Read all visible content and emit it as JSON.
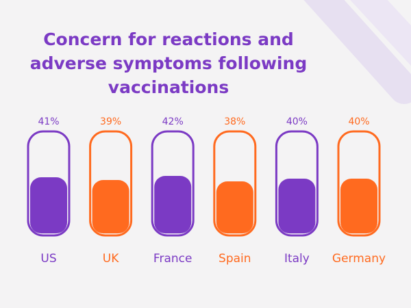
{
  "title_lines": [
    "Concern for reactions and",
    "adverse symptoms following",
    "vaccinations"
  ],
  "colors": {
    "purple": "#7b3ac4",
    "orange": "#ff6a1f",
    "background": "#f4f3f4"
  },
  "chart_data": {
    "type": "bar",
    "title": "Concern for reactions and adverse symptoms following vaccinations",
    "categories": [
      "US",
      "UK",
      "France",
      "Spain",
      "Italy",
      "Germany"
    ],
    "values": [
      41,
      39,
      42,
      38,
      40,
      40
    ],
    "value_labels": [
      "41%",
      "39%",
      "42%",
      "38%",
      "40%",
      "40%"
    ],
    "bar_colors": [
      "#7b3ac4",
      "#ff6a1f",
      "#7b3ac4",
      "#ff6a1f",
      "#7b3ac4",
      "#ff6a1f"
    ],
    "grid": false,
    "legend": "none"
  }
}
